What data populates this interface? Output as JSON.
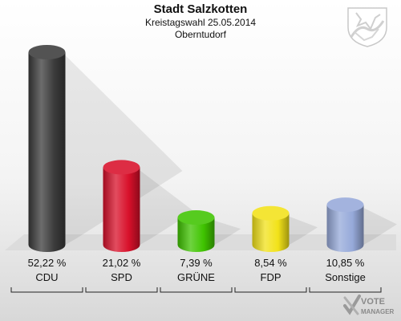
{
  "header": {
    "title": "Stadt Salzkotten",
    "subtitle": "Kreistagswahl 25.05.2014",
    "district": "Oberntudorf"
  },
  "logo": {
    "line1": "VOTE",
    "line2": "MANAGER"
  },
  "icons": {
    "crest": "coat-of-arms-icon",
    "logo_mark": "vote-check-icon"
  },
  "chart_data": {
    "type": "bar",
    "categories": [
      "CDU",
      "SPD",
      "GRÜNE",
      "FDP",
      "Sonstige"
    ],
    "values": [
      52.22,
      21.02,
      7.39,
      8.54,
      10.85
    ],
    "labels": [
      "52,22 %",
      "21,02 %",
      "7,39 %",
      "8,54 %",
      "10,85 %"
    ],
    "colors": [
      "#3b3b3b",
      "#d8102a",
      "#3fc400",
      "#f2e219",
      "#96a9d9"
    ],
    "ylim": [
      0,
      55
    ]
  }
}
